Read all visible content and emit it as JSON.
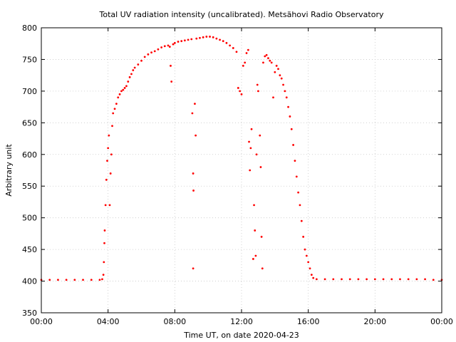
{
  "chart_data": {
    "type": "scatter",
    "title": "Total UV radiation intensity (uncalibrated). Metsähovi Radio Observatory",
    "xlabel": "Time UT, on date 2020-04-23",
    "ylabel": "Arbitrary unit",
    "xlim": [
      "00:00",
      "24:00"
    ],
    "ylim": [
      350,
      800
    ],
    "x_ticks": [
      "00:00",
      "04:00",
      "08:00",
      "12:00",
      "16:00",
      "20:00",
      "00:00"
    ],
    "y_ticks": [
      "350",
      "400",
      "450",
      "500",
      "550",
      "600",
      "650",
      "700",
      "750",
      "800"
    ],
    "grid": true,
    "marker_color": "#ff0000",
    "series": [
      {
        "x_unit": "hours UT",
        "points": [
          [
            0.0,
            402
          ],
          [
            0.5,
            402
          ],
          [
            1.0,
            402
          ],
          [
            1.5,
            402
          ],
          [
            2.0,
            402
          ],
          [
            2.5,
            402
          ],
          [
            3.0,
            402
          ],
          [
            3.5,
            402
          ],
          [
            3.65,
            403
          ],
          [
            3.72,
            410
          ],
          [
            3.75,
            430
          ],
          [
            3.78,
            460
          ],
          [
            3.8,
            480
          ],
          [
            3.85,
            520
          ],
          [
            3.9,
            560
          ],
          [
            3.95,
            590
          ],
          [
            4.0,
            610
          ],
          [
            4.05,
            630
          ],
          [
            4.1,
            520
          ],
          [
            4.15,
            570
          ],
          [
            4.2,
            600
          ],
          [
            4.25,
            645
          ],
          [
            4.3,
            665
          ],
          [
            4.4,
            672
          ],
          [
            4.5,
            680
          ],
          [
            4.6,
            690
          ],
          [
            4.7,
            695
          ],
          [
            4.8,
            700
          ],
          [
            4.9,
            702
          ],
          [
            5.0,
            705
          ],
          [
            5.1,
            708
          ],
          [
            5.2,
            715
          ],
          [
            5.3,
            722
          ],
          [
            5.4,
            727
          ],
          [
            5.5,
            733
          ],
          [
            5.6,
            737
          ],
          [
            5.8,
            742
          ],
          [
            6.0,
            748
          ],
          [
            6.2,
            754
          ],
          [
            6.4,
            758
          ],
          [
            6.6,
            761
          ],
          [
            6.8,
            763
          ],
          [
            7.0,
            766
          ],
          [
            7.2,
            769
          ],
          [
            7.4,
            771
          ],
          [
            7.6,
            772
          ],
          [
            7.7,
            770
          ],
          [
            7.75,
            740
          ],
          [
            7.8,
            715
          ],
          [
            7.9,
            774
          ],
          [
            8.0,
            776
          ],
          [
            8.2,
            778
          ],
          [
            8.4,
            779
          ],
          [
            8.6,
            780
          ],
          [
            8.8,
            781
          ],
          [
            9.0,
            782
          ],
          [
            9.05,
            665
          ],
          [
            9.1,
            570
          ],
          [
            9.12,
            543
          ],
          [
            9.2,
            680
          ],
          [
            9.25,
            630
          ],
          [
            9.3,
            783
          ],
          [
            9.5,
            784
          ],
          [
            9.7,
            785
          ],
          [
            9.1,
            420
          ],
          [
            9.9,
            786
          ],
          [
            10.1,
            786
          ],
          [
            10.3,
            785
          ],
          [
            10.5,
            783
          ],
          [
            10.7,
            781
          ],
          [
            10.9,
            779
          ],
          [
            11.1,
            776
          ],
          [
            11.3,
            772
          ],
          [
            11.5,
            768
          ],
          [
            11.7,
            762
          ],
          [
            11.8,
            705
          ],
          [
            11.9,
            700
          ],
          [
            12.0,
            695
          ],
          [
            12.1,
            740
          ],
          [
            12.2,
            745
          ],
          [
            12.3,
            760
          ],
          [
            12.4,
            765
          ],
          [
            12.45,
            620
          ],
          [
            12.5,
            575
          ],
          [
            12.55,
            610
          ],
          [
            12.6,
            640
          ],
          [
            12.7,
            435
          ],
          [
            12.75,
            520
          ],
          [
            12.8,
            480
          ],
          [
            12.85,
            440
          ],
          [
            12.9,
            600
          ],
          [
            12.95,
            710
          ],
          [
            13.0,
            700
          ],
          [
            13.1,
            630
          ],
          [
            13.15,
            580
          ],
          [
            13.2,
            470
          ],
          [
            13.25,
            420
          ],
          [
            13.3,
            745
          ],
          [
            13.4,
            755
          ],
          [
            13.5,
            757
          ],
          [
            13.6,
            752
          ],
          [
            13.7,
            748
          ],
          [
            13.8,
            745
          ],
          [
            13.9,
            690
          ],
          [
            14.0,
            730
          ],
          [
            14.1,
            740
          ],
          [
            14.2,
            735
          ],
          [
            14.3,
            725
          ],
          [
            14.4,
            720
          ],
          [
            14.5,
            710
          ],
          [
            14.6,
            700
          ],
          [
            14.7,
            690
          ],
          [
            14.8,
            675
          ],
          [
            14.9,
            660
          ],
          [
            15.0,
            640
          ],
          [
            15.1,
            615
          ],
          [
            15.2,
            590
          ],
          [
            15.3,
            565
          ],
          [
            15.4,
            540
          ],
          [
            15.5,
            520
          ],
          [
            15.6,
            495
          ],
          [
            15.7,
            470
          ],
          [
            15.8,
            450
          ],
          [
            15.9,
            440
          ],
          [
            16.0,
            430
          ],
          [
            16.1,
            420
          ],
          [
            16.2,
            410
          ],
          [
            16.3,
            405
          ],
          [
            16.5,
            403
          ],
          [
            17.0,
            403
          ],
          [
            17.5,
            403
          ],
          [
            18.0,
            403
          ],
          [
            18.5,
            403
          ],
          [
            19.0,
            403
          ],
          [
            19.5,
            403
          ],
          [
            20.0,
            403
          ],
          [
            20.5,
            403
          ],
          [
            21.0,
            403
          ],
          [
            21.5,
            403
          ],
          [
            22.0,
            403
          ],
          [
            22.5,
            403
          ],
          [
            23.0,
            403
          ],
          [
            23.5,
            402
          ],
          [
            24.0,
            402
          ]
        ]
      }
    ]
  }
}
